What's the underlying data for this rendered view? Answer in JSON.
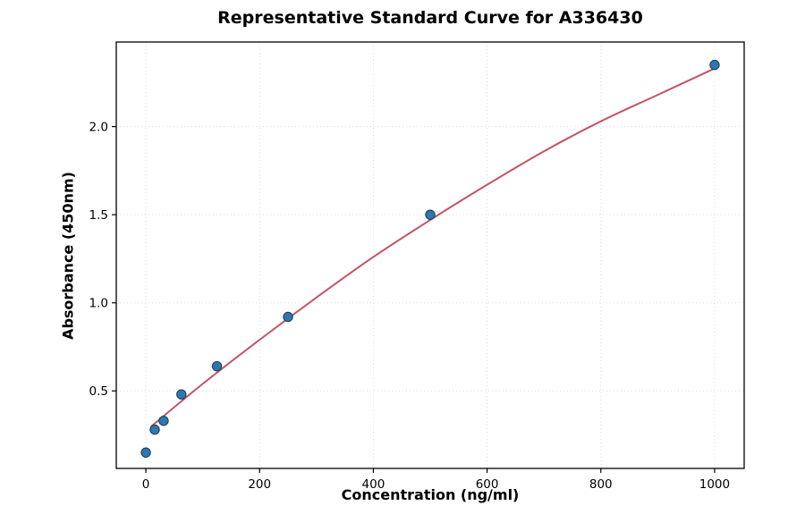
{
  "chart_data": {
    "type": "scatter",
    "title": "Representative Standard Curve for A336430",
    "xlabel": "Concentration (ng/ml)",
    "ylabel": "Absorbance (450nm)",
    "xlim": [
      -52,
      1052
    ],
    "ylim": [
      0.06,
      2.48
    ],
    "x_ticks": [
      0,
      200,
      400,
      600,
      800,
      1000
    ],
    "y_ticks": [
      0.5,
      1.0,
      1.5,
      2.0
    ],
    "grid": true,
    "grid_color": "#dcdcdc",
    "points": {
      "name": "standards",
      "x": [
        0,
        15.6,
        31.25,
        62.5,
        125,
        250,
        500,
        1000
      ],
      "y": [
        0.15,
        0.28,
        0.33,
        0.48,
        0.64,
        0.92,
        1.5,
        2.35
      ],
      "marker_color": "#2f77ad",
      "marker_edge_color": "#163c5c"
    },
    "fit_line": {
      "name": "fitted curve",
      "x": [
        10,
        100,
        200,
        300,
        400,
        500,
        600,
        700,
        800,
        900,
        1000
      ],
      "y": [
        0.3,
        0.54,
        0.79,
        1.03,
        1.26,
        1.47,
        1.67,
        1.86,
        2.03,
        2.18,
        2.33
      ],
      "color": "#c25465"
    }
  }
}
